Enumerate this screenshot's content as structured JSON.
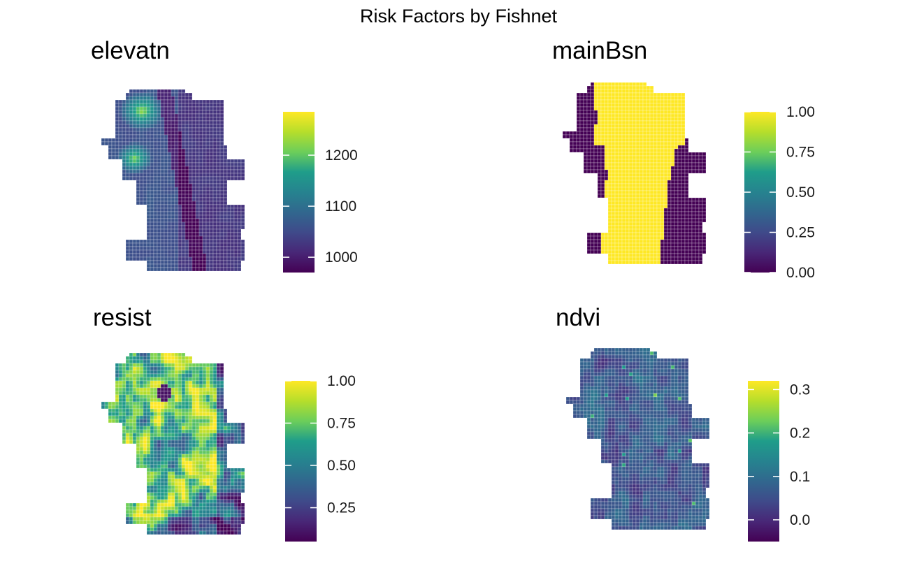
{
  "figure": {
    "title": "Risk Factors by Fishnet"
  },
  "chart_data": [
    {
      "type": "heatmap",
      "title": "elevatn",
      "colormap": "viridis",
      "legend": {
        "type": "colorbar",
        "placement": "right"
      },
      "range": [
        970,
        1285
      ],
      "ticks": [
        1000,
        1100,
        1200
      ],
      "tick_labels": [
        "1000",
        "1100",
        "1200"
      ],
      "pattern": "elevation"
    },
    {
      "type": "heatmap",
      "title": "mainBsn",
      "colormap": "viridis",
      "legend": {
        "type": "colorbar",
        "placement": "right"
      },
      "range": [
        0,
        1
      ],
      "ticks": [
        0,
        0.25,
        0.5,
        0.75,
        1
      ],
      "tick_labels": [
        "0.00",
        "0.25",
        "0.50",
        "0.75",
        "1.00"
      ],
      "pattern": "basin"
    },
    {
      "type": "heatmap",
      "title": "resist",
      "colormap": "viridis",
      "legend": {
        "type": "colorbar",
        "placement": "right"
      },
      "range": [
        0.05,
        1
      ],
      "ticks": [
        0.25,
        0.5,
        0.75,
        1
      ],
      "tick_labels": [
        "0.25",
        "0.50",
        "0.75",
        "1.00"
      ],
      "pattern": "resist"
    },
    {
      "type": "heatmap",
      "title": "ndvi",
      "colormap": "viridis",
      "legend": {
        "type": "colorbar",
        "placement": "right"
      },
      "range": [
        -0.05,
        0.32
      ],
      "ticks": [
        0,
        0.1,
        0.2,
        0.3
      ],
      "tick_labels": [
        "0.0",
        "0.1",
        "0.2",
        "0.3"
      ],
      "pattern": "ndvi"
    }
  ]
}
